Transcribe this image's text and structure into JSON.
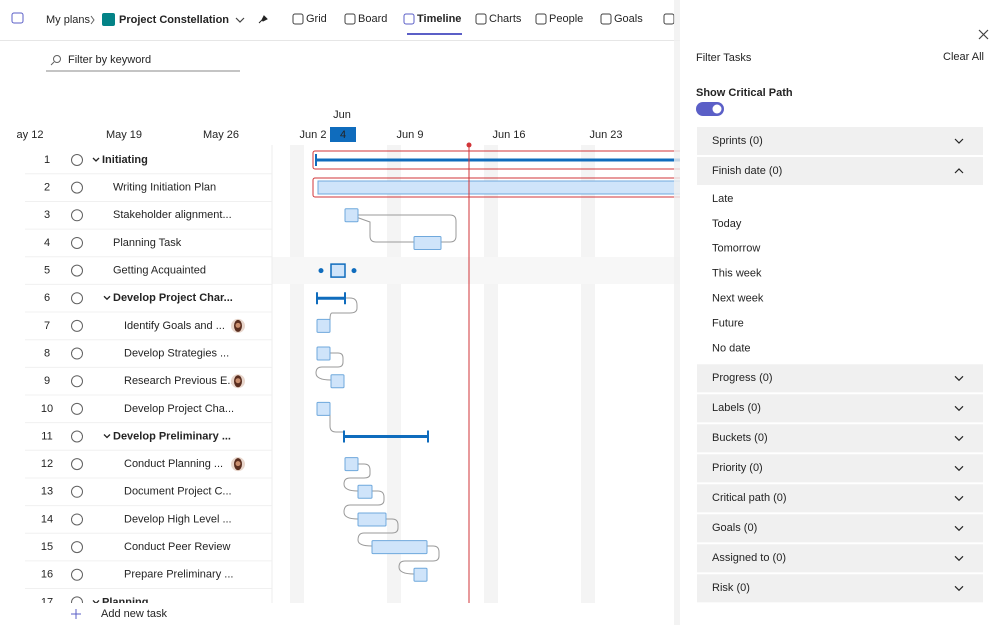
{
  "breadcrumb": {
    "parent": "My plans",
    "project": "Project Constellation"
  },
  "tabs": [
    "Grid",
    "Board",
    "Timeline",
    "Charts",
    "People",
    "Goals"
  ],
  "search_placeholder": "Filter by keyword",
  "timeline": {
    "month": "Jun",
    "today": 4,
    "dates": [
      "ay 12",
      "May 19",
      "May 26",
      "Jun 2",
      "Jun 9",
      "Jun 16",
      "Jun 23"
    ]
  },
  "tasks": [
    {
      "number": 1,
      "name": "Initiating"
    },
    {
      "number": 2,
      "name": "Writing Initiation Plan"
    },
    {
      "number": 3,
      "name": "Stakeholder alignment..."
    },
    {
      "number": 4,
      "name": "Planning Task"
    },
    {
      "number": 5,
      "name": "Getting Acquainted"
    },
    {
      "number": 6,
      "name": "Develop Project Char..."
    },
    {
      "number": 7,
      "name": "Identify Goals and ..."
    },
    {
      "number": 8,
      "name": "Develop Strategies ..."
    },
    {
      "number": 9,
      "name": "Research Previous E..."
    },
    {
      "number": 10,
      "name": "Develop Project Cha..."
    },
    {
      "number": 11,
      "name": "Develop Preliminary ..."
    },
    {
      "number": 12,
      "name": "Conduct Planning ..."
    },
    {
      "number": 13,
      "name": "Document Project C..."
    },
    {
      "number": 14,
      "name": "Develop High Level ..."
    },
    {
      "number": 15,
      "name": "Conduct Peer Review"
    },
    {
      "number": 16,
      "name": "Prepare Preliminary ..."
    },
    {
      "number": 17,
      "name": "Planning"
    }
  ],
  "add_task": "Add new task",
  "panel": {
    "title": "Filter Tasks",
    "clear": "Clear All",
    "critical_path_label": "Show Critical Path",
    "sections": [
      {
        "label": "Sprints (0)"
      },
      {
        "label": "Finish date (0)",
        "options": [
          "Late",
          "Today",
          "Tomorrow",
          "This week",
          "Next week",
          "Future",
          "No date"
        ]
      },
      {
        "label": "Progress (0)"
      },
      {
        "label": "Labels (0)"
      },
      {
        "label": "Buckets (0)"
      },
      {
        "label": "Priority (0)"
      },
      {
        "label": "Critical path (0)"
      },
      {
        "label": "Goals (0)"
      },
      {
        "label": "Assigned to (0)"
      },
      {
        "label": "Risk (0)"
      }
    ]
  }
}
